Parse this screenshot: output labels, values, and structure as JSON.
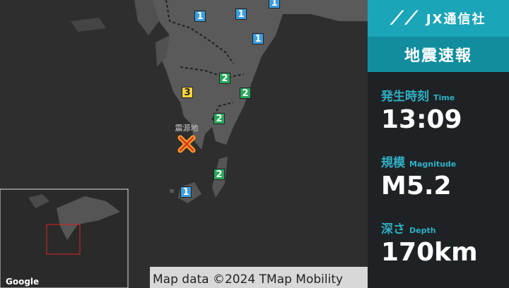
{
  "brand": "JX通信社",
  "panel": {
    "title": "地震速報",
    "fields": [
      {
        "label": "発生時刻",
        "sublabel": "Time",
        "value": "13:09"
      },
      {
        "label": "規模",
        "sublabel": "Magnitude",
        "value": "M5.2"
      },
      {
        "label": "深さ",
        "sublabel": "Depth",
        "value": "170km"
      }
    ]
  },
  "map": {
    "epicenter_label": "震源地",
    "markers": [
      {
        "label": "1"
      },
      {
        "label": "1"
      },
      {
        "label": "1"
      },
      {
        "label": "1"
      },
      {
        "label": "2"
      },
      {
        "label": "3"
      },
      {
        "label": "2"
      },
      {
        "label": "2"
      },
      {
        "label": "2"
      },
      {
        "label": "1"
      }
    ],
    "logo": "Google",
    "attribution": "Map data ©2024 TMap Mobility"
  }
}
